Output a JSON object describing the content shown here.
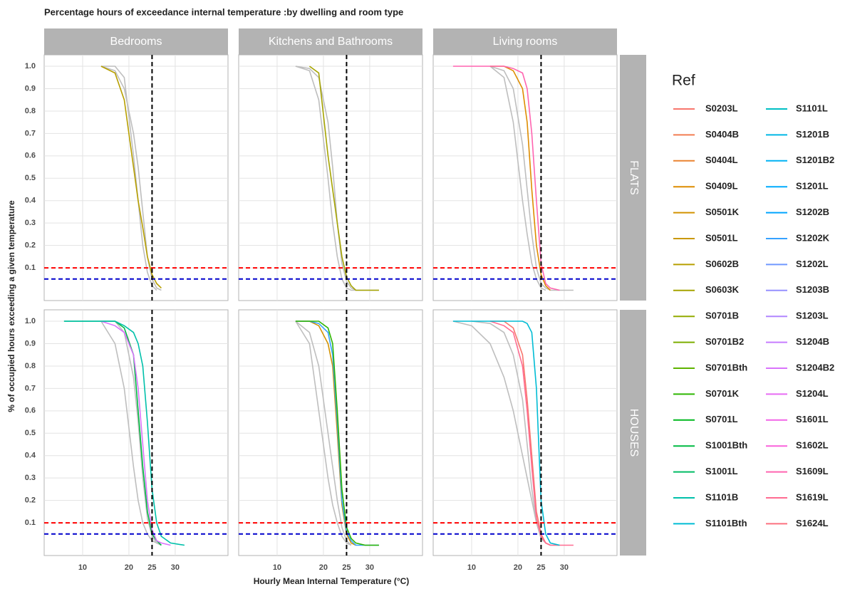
{
  "chart_data": {
    "type": "line",
    "title": "Percentage hours of exceedance internal temperature :by dwelling and room type",
    "x_label": "Hourly Mean Internal Temperature (°C)",
    "y_label": "% of occupied hours exceeding a given temperature",
    "columns": [
      "Bedrooms",
      "Kitchens and Bathrooms",
      "Living rooms"
    ],
    "rows": [
      "FLATS",
      "HOUSES"
    ],
    "xlim": [
      1.7,
      41.4
    ],
    "ylim": [
      -0.046,
      1.051
    ],
    "xticks": [
      10,
      20,
      25,
      30
    ],
    "yticks": [
      0.1,
      0.2,
      0.3,
      0.4,
      0.5,
      0.6,
      0.7,
      0.8,
      0.9,
      {
        "value": 1,
        "label": "1.0"
      }
    ],
    "grid": true,
    "vline": {
      "value": 25,
      "color": "#000000"
    },
    "hlines": [
      {
        "value": 0.1,
        "color": "#ff0000"
      },
      {
        "value": 0.05,
        "color": "#0000cc"
      }
    ],
    "x": [
      6,
      10,
      14,
      17,
      19,
      21,
      22,
      23,
      24,
      25,
      26,
      27,
      29,
      32,
      36
    ],
    "panels": [
      [
        {
          "series": [
            {
              "color": "#bebebe",
              "values": [
                null,
                null,
                1,
                1,
                0.95,
                0.6,
                0.4,
                0.2,
                0.08,
                0.02,
                0,
                null,
                null,
                null,
                null
              ]
            },
            {
              "color": "#bebebe",
              "values": [
                null,
                null,
                1,
                0.98,
                0.9,
                0.7,
                0.55,
                0.35,
                0.15,
                0.05,
                0.01,
                0,
                null,
                null,
                null
              ]
            },
            {
              "color": "#B79F00",
              "values": [
                null,
                null,
                1,
                0.97,
                0.85,
                0.55,
                0.4,
                0.28,
                0.15,
                0.07,
                0.03,
                0.01,
                null,
                null,
                null
              ]
            }
          ]
        },
        {
          "series": [
            {
              "color": "#bebebe",
              "values": [
                null,
                null,
                1,
                0.98,
                0.85,
                0.5,
                0.3,
                0.15,
                0.05,
                0.01,
                0,
                0,
                0,
                0,
                null
              ]
            },
            {
              "color": "#bebebe",
              "values": [
                null,
                null,
                1,
                0.99,
                0.95,
                0.75,
                0.55,
                0.3,
                0.12,
                0.04,
                0.01,
                0,
                null,
                null,
                null
              ]
            },
            {
              "color": "#A6A400",
              "values": [
                null,
                null,
                null,
                1,
                0.97,
                0.6,
                0.45,
                0.3,
                0.15,
                0.06,
                0.02,
                0,
                0,
                0,
                null
              ]
            }
          ]
        },
        {
          "series": [
            {
              "color": "#bebebe",
              "values": [
                null,
                null,
                1,
                0.98,
                0.9,
                0.65,
                0.45,
                0.25,
                0.1,
                0.03,
                0.01,
                0,
                0,
                0,
                null
              ]
            },
            {
              "color": "#bebebe",
              "values": [
                null,
                null,
                1,
                0.95,
                0.75,
                0.4,
                0.25,
                0.12,
                0.05,
                0.01,
                0,
                null,
                null,
                null,
                null
              ]
            },
            {
              "color": "#DE8C00",
              "values": [
                null,
                null,
                1,
                1,
                0.98,
                0.9,
                0.75,
                0.45,
                0.2,
                0.07,
                0.02,
                0,
                null,
                null,
                null
              ]
            },
            {
              "color": "#FF64B0",
              "values": [
                1,
                1,
                1,
                1,
                0.99,
                0.97,
                0.9,
                0.7,
                0.4,
                0.12,
                0.03,
                0.01,
                0,
                null,
                null
              ]
            }
          ]
        }
      ],
      [
        {
          "series": [
            {
              "color": "#bebebe",
              "values": [
                null,
                null,
                1,
                0.9,
                0.7,
                0.35,
                0.2,
                0.1,
                0.05,
                0.02,
                0.01,
                0,
                null,
                null,
                null
              ]
            },
            {
              "color": "#bebebe",
              "values": [
                null,
                null,
                1,
                1,
                0.95,
                0.75,
                0.55,
                0.3,
                0.12,
                0.04,
                0.01,
                0,
                null,
                null,
                null
              ]
            },
            {
              "color": "#00BA42",
              "values": [
                1,
                1,
                1,
                1,
                0.97,
                0.85,
                0.6,
                0.35,
                0.15,
                0.05,
                0.02,
                0,
                null,
                null,
                null
              ]
            },
            {
              "color": "#D973FC",
              "values": [
                null,
                null,
                1,
                0.98,
                0.95,
                0.85,
                0.7,
                0.45,
                0.2,
                0.07,
                0.02,
                0.01,
                0,
                null,
                null
              ]
            },
            {
              "color": "#00C0AA",
              "values": [
                1,
                1,
                1,
                1,
                0.98,
                0.95,
                0.9,
                0.8,
                0.55,
                0.25,
                0.1,
                0.04,
                0.01,
                0,
                null
              ]
            }
          ]
        },
        {
          "series": [
            {
              "color": "#bebebe",
              "values": [
                null,
                null,
                1,
                0.95,
                0.8,
                0.5,
                0.35,
                0.2,
                0.08,
                0.02,
                0,
                null,
                null,
                null,
                null
              ]
            },
            {
              "color": "#bebebe",
              "values": [
                null,
                null,
                1,
                0.9,
                0.6,
                0.3,
                0.18,
                0.1,
                0.04,
                0.01,
                0,
                null,
                null,
                null,
                null
              ]
            },
            {
              "color": "#D39200",
              "values": [
                null,
                null,
                1,
                1,
                0.98,
                0.9,
                0.8,
                0.5,
                0.18,
                0.05,
                0.01,
                0,
                null,
                null,
                null
              ]
            },
            {
              "color": "#35A2FF",
              "values": [
                null,
                null,
                1,
                1,
                0.99,
                0.95,
                0.85,
                0.55,
                0.2,
                0.06,
                0.02,
                0,
                0,
                0,
                null
              ]
            },
            {
              "color": "#2DB600",
              "values": [
                null,
                null,
                1,
                1,
                1,
                0.97,
                0.9,
                0.6,
                0.25,
                0.08,
                0.03,
                0.01,
                0,
                0,
                null
              ]
            }
          ]
        },
        {
          "series": [
            {
              "color": "#bebebe",
              "values": [
                1,
                0.98,
                0.9,
                0.75,
                0.6,
                0.4,
                0.3,
                0.2,
                0.1,
                0.04,
                0.01,
                0,
                null,
                null,
                null
              ]
            },
            {
              "color": "#bebebe",
              "values": [
                null,
                1,
                0.99,
                0.95,
                0.85,
                0.65,
                0.45,
                0.25,
                0.1,
                0.03,
                0.01,
                0,
                0,
                null,
                null
              ]
            },
            {
              "color": "#F8766D",
              "values": [
                null,
                null,
                1,
                1,
                0.97,
                0.85,
                0.65,
                0.4,
                0.15,
                0.05,
                0.01,
                0,
                null,
                null,
                null
              ]
            },
            {
              "color": "#FF6C91",
              "values": [
                null,
                null,
                1,
                0.98,
                0.95,
                0.8,
                0.6,
                0.35,
                0.12,
                0.04,
                0.01,
                0,
                0,
                0,
                null
              ]
            },
            {
              "color": "#00BCD4",
              "values": [
                1,
                1,
                1,
                1,
                1,
                1,
                0.99,
                0.95,
                0.7,
                0.2,
                0.05,
                0.01,
                0,
                null,
                null
              ]
            }
          ]
        }
      ]
    ],
    "legend": {
      "title": "Ref",
      "entries": [
        {
          "name": "S0203L",
          "color": "#F8766D"
        },
        {
          "name": "S0404B",
          "color": "#F27D52"
        },
        {
          "name": "S0404L",
          "color": "#EA8331"
        },
        {
          "name": "S0409L",
          "color": "#DE8C00"
        },
        {
          "name": "S0501K",
          "color": "#D39200"
        },
        {
          "name": "S0501L",
          "color": "#C99800"
        },
        {
          "name": "S0602B",
          "color": "#B79F00"
        },
        {
          "name": "S0603K",
          "color": "#A6A400"
        },
        {
          "name": "S0701B",
          "color": "#93AA00"
        },
        {
          "name": "S0701B2",
          "color": "#7CAE00"
        },
        {
          "name": "S0701Bth",
          "color": "#5EB300"
        },
        {
          "name": "S0701K",
          "color": "#2DB600"
        },
        {
          "name": "S0701L",
          "color": "#00B81F"
        },
        {
          "name": "S1001Bth",
          "color": "#00BA42"
        },
        {
          "name": "S1001L",
          "color": "#00BC65"
        },
        {
          "name": "S1101B",
          "color": "#00C0AA"
        },
        {
          "name": "S1101Bth",
          "color": "#00BCD4"
        },
        {
          "name": "S1101L",
          "color": "#00BFC4"
        },
        {
          "name": "S1201B",
          "color": "#00B8E5"
        },
        {
          "name": "S1201B2",
          "color": "#00B2F3"
        },
        {
          "name": "S1201L",
          "color": "#00ABFD"
        },
        {
          "name": "S1202B",
          "color": "#00A5FF"
        },
        {
          "name": "S1202K",
          "color": "#35A2FF"
        },
        {
          "name": "S1202L",
          "color": "#7099FF"
        },
        {
          "name": "S1203B",
          "color": "#9590FF"
        },
        {
          "name": "S1203L",
          "color": "#B186FF"
        },
        {
          "name": "S1204B",
          "color": "#C77CFF"
        },
        {
          "name": "S1204B2",
          "color": "#D973FC"
        },
        {
          "name": "S1204L",
          "color": "#E76BF3"
        },
        {
          "name": "S1601L",
          "color": "#F265E7"
        },
        {
          "name": "S1602L",
          "color": "#FA62DB"
        },
        {
          "name": "S1609L",
          "color": "#FF64B0"
        },
        {
          "name": "S1619L",
          "color": "#FF6C91"
        },
        {
          "name": "S1624L",
          "color": "#FC717F"
        }
      ]
    }
  }
}
